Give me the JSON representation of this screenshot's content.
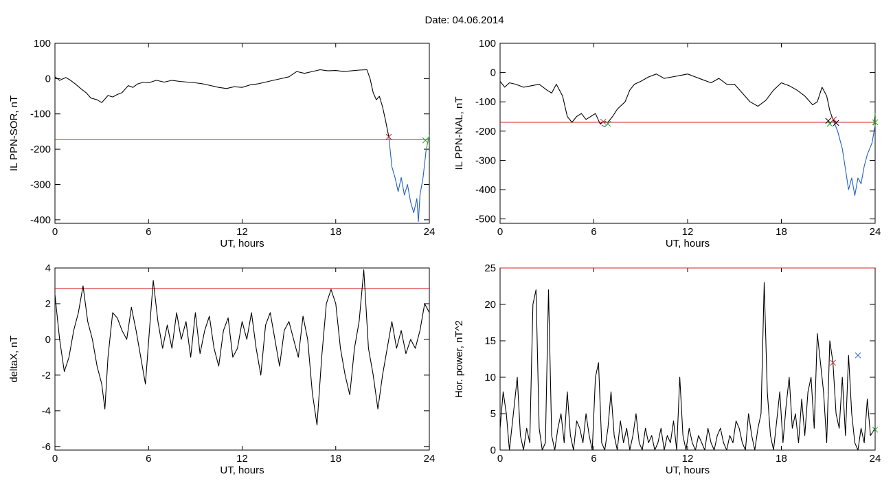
{
  "title": "Date:  04.06.2014",
  "chart_data": [
    {
      "type": "line",
      "ylabel": "IL PPN-SOR, nT",
      "xlabel": "UT, hours",
      "xlim": [
        0,
        24
      ],
      "ylim": [
        -410,
        100
      ],
      "xticks": [
        0,
        6,
        12,
        18,
        24
      ],
      "yticks": [
        100,
        0,
        -100,
        -200,
        -300,
        -400
      ],
      "threshold": -173,
      "series": [
        {
          "color": "#000000",
          "x": [
            0,
            0.3,
            0.7,
            1.0,
            1.3,
            1.7,
            2.0,
            2.3,
            2.7,
            3.0,
            3.2,
            3.4,
            3.7,
            4.0,
            4.3,
            4.7,
            5.0,
            5.3,
            5.7,
            6.0,
            6.5,
            7.0,
            7.5,
            8.0,
            8.5,
            9.0,
            9.5,
            10.0,
            10.5,
            11.0,
            11.5,
            12.0,
            12.5,
            13.0,
            13.5,
            14.0,
            14.5,
            15.0,
            15.5,
            16.0,
            16.5,
            17.0,
            17.5,
            18.0,
            18.5,
            19.0,
            19.5,
            20.0,
            20.2,
            20.4,
            20.6,
            20.8,
            21.0,
            21.2,
            21.4
          ],
          "y": [
            5,
            -5,
            3,
            -5,
            -15,
            -30,
            -40,
            -55,
            -60,
            -68,
            -58,
            -48,
            -52,
            -45,
            -40,
            -20,
            -25,
            -15,
            -10,
            -12,
            -5,
            -10,
            -5,
            -8,
            -10,
            -12,
            -15,
            -20,
            -25,
            -28,
            -23,
            -25,
            -18,
            -15,
            -10,
            -5,
            0,
            5,
            20,
            15,
            20,
            25,
            22,
            23,
            20,
            22,
            24,
            25,
            0,
            -40,
            -60,
            -50,
            -80,
            -120,
            -165
          ]
        },
        {
          "color": "#1f5fbf",
          "x": [
            21.4,
            21.6,
            21.8,
            22.0,
            22.2,
            22.4,
            22.6,
            22.8,
            23.0,
            23.2,
            23.3,
            23.4,
            23.6,
            23.8
          ],
          "y": [
            -165,
            -250,
            -280,
            -320,
            -280,
            -330,
            -300,
            -350,
            -380,
            -340,
            -405,
            -330,
            -280,
            -200
          ]
        },
        {
          "color": "#2ca02c",
          "x": [
            23.8,
            24.0
          ],
          "y": [
            -200,
            -160
          ]
        }
      ],
      "markers": [
        {
          "x": 21.4,
          "y": -165,
          "color": "#cc2222"
        },
        {
          "x": 23.75,
          "y": -175,
          "color": "#2ca02c"
        }
      ]
    },
    {
      "type": "line",
      "ylabel": "IL PPN-NAL, nT",
      "xlabel": "UT, hours",
      "xlim": [
        0,
        24
      ],
      "ylim": [
        -515,
        100
      ],
      "xticks": [
        0,
        6,
        12,
        18,
        24
      ],
      "yticks": [
        100,
        0,
        -100,
        -200,
        -300,
        -400,
        -500
      ],
      "threshold": -170,
      "series": [
        {
          "color": "#000000",
          "x": [
            0,
            0.3,
            0.6,
            1.0,
            1.5,
            2.0,
            2.5,
            3.0,
            3.3,
            3.6,
            4.0,
            4.3,
            4.6,
            4.9,
            5.2,
            5.5,
            5.8,
            6.1,
            6.4,
            6.6,
            6.9,
            7.2,
            7.5,
            8.0,
            8.3,
            8.6,
            9.0,
            9.5,
            10.0,
            10.5,
            11.0,
            11.5,
            12.0,
            12.5,
            13.0,
            13.5,
            14.0,
            14.5,
            15.0,
            15.5,
            16.0,
            16.5,
            17.0,
            17.5,
            18.0,
            18.5,
            19.0,
            19.5,
            20.0,
            20.3,
            20.6,
            20.9,
            21.1,
            21.3
          ],
          "y": [
            -30,
            -50,
            -35,
            -40,
            -50,
            -45,
            -40,
            -60,
            -70,
            -40,
            -80,
            -150,
            -170,
            -150,
            -140,
            -160,
            -150,
            -140,
            -175,
            -168,
            -170,
            -150,
            -125,
            -100,
            -60,
            -40,
            -30,
            -15,
            -5,
            -20,
            -15,
            -10,
            -5,
            -15,
            -25,
            -35,
            -20,
            -40,
            -40,
            -70,
            -100,
            -115,
            -95,
            -60,
            -35,
            -45,
            -60,
            -80,
            -110,
            -100,
            -50,
            -80,
            -130,
            -160
          ]
        },
        {
          "color": "#1f5fbf",
          "x": [
            6.5,
            6.7,
            6.9
          ],
          "y": [
            -180,
            -185,
            -175
          ]
        },
        {
          "color": "#1f5fbf",
          "x": [
            21.3,
            21.6,
            21.9,
            22.1,
            22.3,
            22.5,
            22.7,
            22.9,
            23.1,
            23.3,
            23.5,
            23.8,
            24.0
          ],
          "y": [
            -160,
            -200,
            -260,
            -330,
            -400,
            -360,
            -420,
            -360,
            -380,
            -320,
            -280,
            -240,
            -180
          ]
        },
        {
          "color": "#2ca02c",
          "x": [
            23.9,
            24.0
          ],
          "y": [
            -180,
            -140
          ]
        }
      ],
      "markers": [
        {
          "x": 6.6,
          "y": -168,
          "color": "#cc2222"
        },
        {
          "x": 6.9,
          "y": -175,
          "color": "#2ca02c"
        },
        {
          "x": 21.0,
          "y": -165,
          "color": "#000000"
        },
        {
          "x": 21.1,
          "y": -175,
          "color": "#2ca02c"
        },
        {
          "x": 21.35,
          "y": -160,
          "color": "#cc2222"
        },
        {
          "x": 21.5,
          "y": -172,
          "color": "#000000"
        },
        {
          "x": 24.0,
          "y": -170,
          "color": "#2ca02c"
        }
      ]
    },
    {
      "type": "line",
      "ylabel": "deltaX, nT",
      "xlabel": "UT, hours",
      "xlim": [
        0,
        24
      ],
      "ylim": [
        -6.2,
        4
      ],
      "xticks": [
        0,
        6,
        12,
        18,
        24
      ],
      "yticks": [
        4,
        2,
        0,
        -2,
        -4,
        -6
      ],
      "threshold": 2.85,
      "series": [
        {
          "color": "#000000",
          "x": [
            0,
            0.3,
            0.6,
            0.9,
            1.2,
            1.5,
            1.8,
            2.1,
            2.4,
            2.7,
            3.0,
            3.2,
            3.4,
            3.7,
            4.0,
            4.3,
            4.6,
            4.9,
            5.2,
            5.5,
            5.8,
            6.1,
            6.3,
            6.6,
            6.9,
            7.2,
            7.5,
            7.8,
            8.1,
            8.4,
            8.7,
            9.0,
            9.3,
            9.6,
            9.9,
            10.2,
            10.5,
            10.8,
            11.1,
            11.4,
            11.7,
            12.0,
            12.3,
            12.6,
            12.9,
            13.2,
            13.5,
            13.8,
            14.1,
            14.4,
            14.7,
            15.0,
            15.3,
            15.6,
            15.9,
            16.2,
            16.5,
            16.8,
            17.1,
            17.4,
            17.7,
            18.0,
            18.3,
            18.6,
            18.9,
            19.2,
            19.5,
            19.8,
            20.1,
            20.4,
            20.7,
            21.0,
            21.3,
            21.6,
            21.9,
            22.2,
            22.5,
            22.8,
            23.1,
            23.4,
            23.7,
            24.0
          ],
          "y": [
            2.5,
            0,
            -1.8,
            -1.0,
            0.5,
            1.5,
            3.0,
            1.0,
            0.0,
            -1.5,
            -2.5,
            -3.9,
            -1.0,
            1.5,
            1.2,
            0.5,
            0.0,
            1.8,
            0.5,
            -1.0,
            -2.5,
            1.0,
            3.3,
            1.0,
            -0.5,
            0.8,
            -0.5,
            1.5,
            0.0,
            1.0,
            -1.0,
            1.5,
            -0.8,
            0.5,
            1.3,
            -0.5,
            -1.5,
            0.5,
            1.2,
            -1.0,
            -0.5,
            1.0,
            0.0,
            1.5,
            -0.5,
            -2.0,
            0.8,
            1.5,
            0.0,
            -1.5,
            0.5,
            1.0,
            0.0,
            -1.0,
            1.3,
            0.0,
            -3.0,
            -4.8,
            -1.0,
            2.0,
            2.8,
            2.0,
            -0.5,
            -2.0,
            -3.1,
            -0.5,
            1.0,
            3.9,
            -0.5,
            -2.0,
            -3.9,
            -2.0,
            -0.5,
            1.0,
            -0.5,
            0.5,
            -0.8,
            0.0,
            -0.5,
            0.5,
            2.0,
            1.5
          ]
        }
      ]
    },
    {
      "type": "line",
      "ylabel": "Hor. power, nT^2",
      "xlabel": "UT, hours",
      "xlim": [
        0,
        24
      ],
      "ylim": [
        0,
        25
      ],
      "xticks": [
        0,
        6,
        12,
        18,
        24
      ],
      "yticks": [
        0,
        5,
        10,
        15,
        20,
        25
      ],
      "threshold": 25,
      "series": [
        {
          "color": "#000000",
          "x": [
            0,
            0.2,
            0.4,
            0.6,
            0.9,
            1.1,
            1.3,
            1.5,
            1.7,
            1.9,
            2.1,
            2.3,
            2.5,
            2.7,
            2.9,
            3.1,
            3.3,
            3.5,
            3.7,
            3.9,
            4.1,
            4.3,
            4.5,
            4.7,
            4.9,
            5.1,
            5.3,
            5.5,
            5.7,
            5.9,
            6.1,
            6.3,
            6.5,
            6.7,
            6.9,
            7.1,
            7.3,
            7.5,
            7.7,
            7.9,
            8.1,
            8.3,
            8.5,
            8.7,
            8.9,
            9.1,
            9.3,
            9.5,
            9.7,
            9.9,
            10.1,
            10.3,
            10.5,
            10.7,
            10.9,
            11.1,
            11.3,
            11.5,
            11.7,
            11.9,
            12.1,
            12.3,
            12.5,
            12.7,
            12.9,
            13.1,
            13.3,
            13.5,
            13.7,
            13.9,
            14.1,
            14.3,
            14.5,
            14.7,
            14.9,
            15.1,
            15.3,
            15.5,
            15.7,
            15.9,
            16.1,
            16.3,
            16.5,
            16.7,
            16.9,
            17.1,
            17.3,
            17.5,
            17.7,
            17.9,
            18.1,
            18.3,
            18.5,
            18.7,
            18.9,
            19.1,
            19.3,
            19.5,
            19.7,
            19.9,
            20.1,
            20.3,
            20.5,
            20.7,
            20.9,
            21.1,
            21.3,
            21.5,
            21.7,
            21.9,
            22.1,
            22.3,
            22.5,
            22.7,
            22.9,
            23.1,
            23.3,
            23.5,
            23.7,
            24.0
          ],
          "y": [
            3,
            8,
            5,
            0,
            6,
            10,
            2,
            0,
            3,
            1,
            20,
            22,
            3,
            0,
            1,
            22,
            2,
            0,
            3,
            5,
            1,
            8,
            2,
            0,
            4,
            3,
            1,
            5,
            2,
            0,
            10,
            12,
            1,
            0,
            3,
            8,
            2,
            0,
            4,
            1,
            3,
            0,
            2,
            5,
            1,
            0,
            3,
            1,
            2,
            0,
            1,
            3,
            0,
            2,
            1,
            4,
            0,
            10,
            2,
            0,
            3,
            1,
            0,
            2,
            1,
            0,
            3,
            1,
            0,
            2,
            3,
            1,
            0,
            2,
            1,
            4,
            3,
            1,
            0,
            5,
            2,
            0,
            3,
            5,
            23,
            8,
            2,
            0,
            4,
            8,
            1,
            6,
            10,
            3,
            5,
            1,
            7,
            2,
            8,
            10,
            3,
            16,
            12,
            8,
            1,
            15,
            12,
            5,
            3,
            10,
            2,
            13,
            5,
            1,
            0,
            3,
            1,
            7,
            2,
            3
          ]
        }
      ],
      "markers": [
        {
          "x": 21.3,
          "y": 12.0,
          "color": "#cc2222"
        },
        {
          "x": 22.9,
          "y": 13.0,
          "color": "#1f5fbf"
        },
        {
          "x": 24.0,
          "y": 2.8,
          "color": "#2ca02c"
        }
      ]
    }
  ]
}
